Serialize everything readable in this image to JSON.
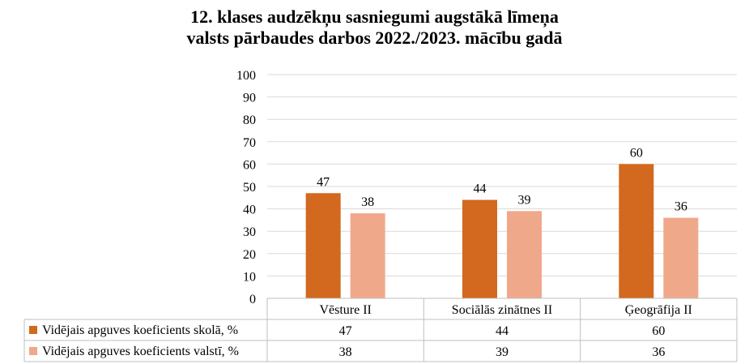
{
  "chart_data": {
    "type": "bar",
    "title": [
      "12. klases audzēkņu sasniegumi augstākā līmeņa",
      "valsts pārbaudes darbos 2022./2023. mācību gadā"
    ],
    "categories": [
      "Vēsture II",
      "Sociālās zinātnes II",
      "Ģeogrāfija II"
    ],
    "series": [
      {
        "name": "Vidējais apguves koeficients skolā, %",
        "values": [
          47,
          44,
          60
        ],
        "color": "#d2691e"
      },
      {
        "name": "Vidējais apguves koeficients valstī, %",
        "values": [
          38,
          39,
          36
        ],
        "color": "#f0a88a"
      }
    ],
    "ylim": [
      0,
      100
    ],
    "yticks": [
      "0",
      "10",
      "20",
      "30",
      "40",
      "50",
      "60",
      "70",
      "80",
      "90",
      "100"
    ],
    "grid": true,
    "legend": "data-table"
  }
}
